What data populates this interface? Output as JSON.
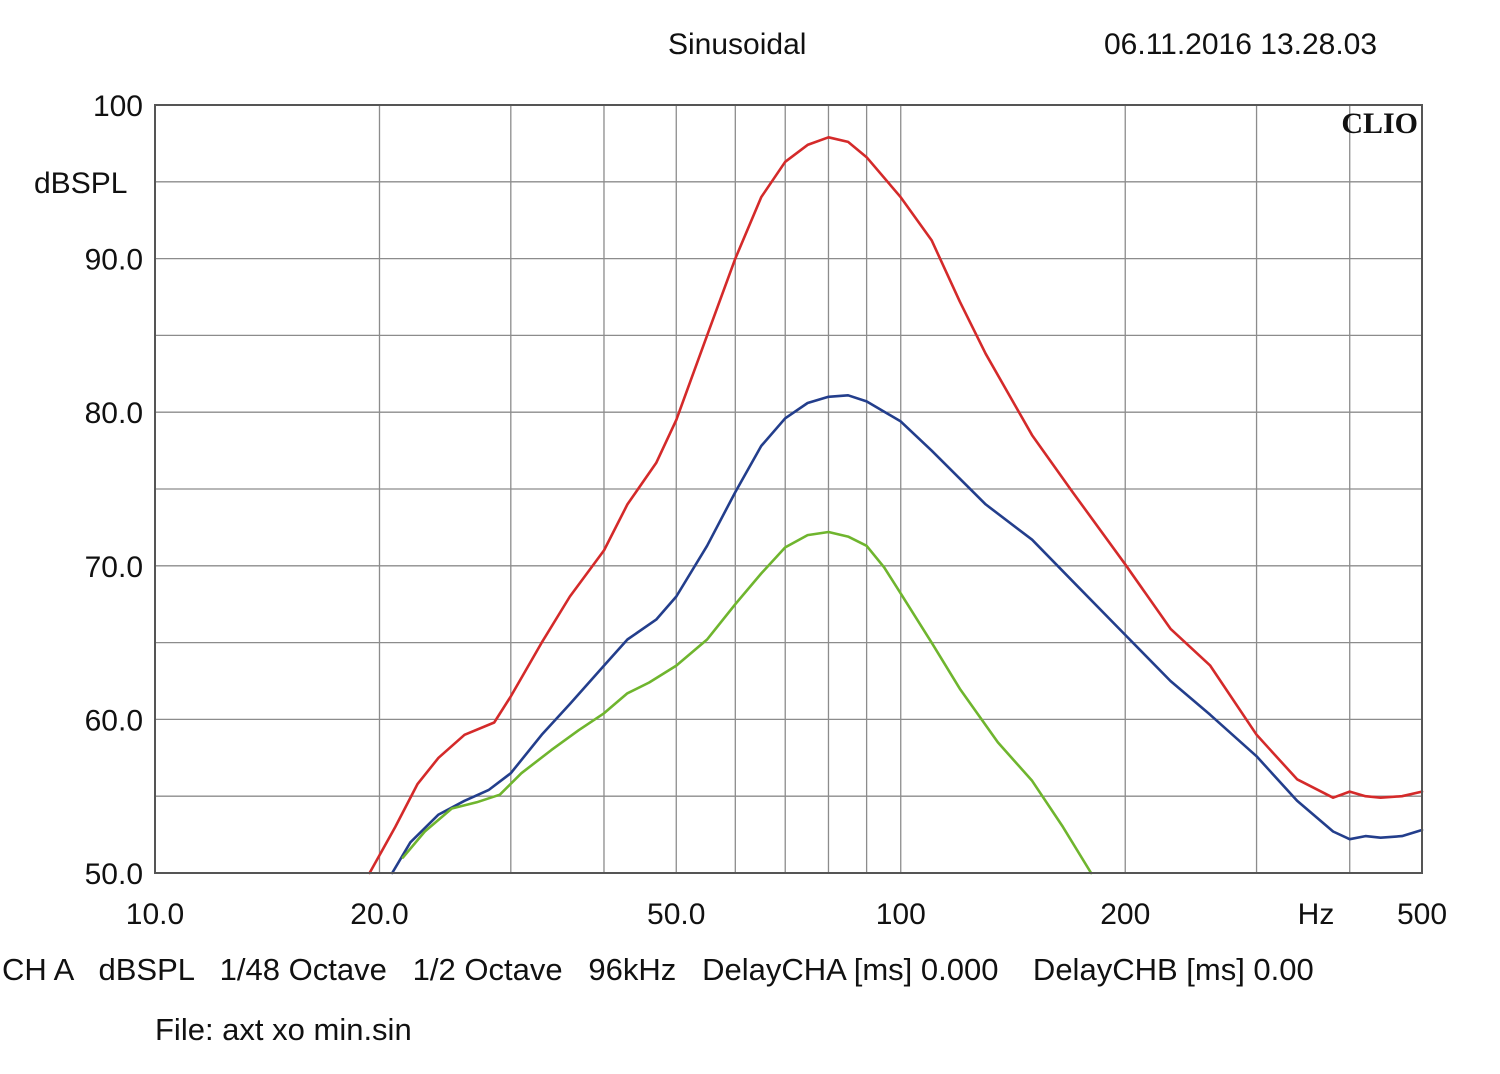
{
  "header": {
    "title": "Sinusoidal",
    "timestamp": "06.11.2016 13.28.03"
  },
  "footer": {
    "settings": "CH A   dBSPL   1/48 Octave   1/2 Octave   96kHz   DelayCHA [ms] 0.000    DelayCHB [ms] 0.00",
    "file": "File: axt xo min.sin"
  },
  "chart_data": {
    "type": "line",
    "brand": "CLIO",
    "ylabel": "dBSPL",
    "xlabel": "Hz",
    "x_scale": "log",
    "xlim": [
      10,
      500
    ],
    "ylim": [
      50,
      100
    ],
    "grid": true,
    "x_tick_labels": [
      {
        "value": 10,
        "label": "10.0"
      },
      {
        "value": 20,
        "label": "20.0"
      },
      {
        "value": 50,
        "label": "50.0"
      },
      {
        "value": 100,
        "label": "100"
      },
      {
        "value": 200,
        "label": "200"
      },
      {
        "value": 500,
        "label": "500"
      }
    ],
    "y_tick_labels": [
      {
        "value": 100,
        "label": "100"
      },
      {
        "value": 90,
        "label": "90.0"
      },
      {
        "value": 80,
        "label": "80.0"
      },
      {
        "value": 70,
        "label": "70.0"
      },
      {
        "value": 60,
        "label": "60.0"
      },
      {
        "value": 50,
        "label": "50.0"
      }
    ],
    "series": [
      {
        "color": "#d42a2a",
        "x": [
          19.4,
          21,
          22.5,
          24,
          26,
          28.5,
          30,
          33,
          36,
          40,
          43,
          47,
          50,
          55,
          60,
          65,
          70,
          75,
          80,
          85,
          90,
          100,
          110,
          120,
          130,
          150,
          170,
          200,
          230,
          260,
          300,
          340,
          380,
          400,
          420,
          440,
          470,
          500
        ],
        "y": [
          50,
          53,
          55.8,
          57.5,
          59,
          59.8,
          61.5,
          65,
          68,
          71,
          74,
          76.7,
          79.5,
          85,
          90,
          94,
          96.3,
          97.4,
          97.9,
          97.6,
          96.6,
          94,
          91.2,
          87.2,
          83.8,
          78.5,
          74.8,
          70.1,
          65.9,
          63.5,
          59,
          56.1,
          54.9,
          55.3,
          55,
          54.9,
          55,
          55.3
        ]
      },
      {
        "color": "#233e8c",
        "x": [
          20.8,
          22,
          24,
          26,
          28,
          30,
          33,
          36,
          40,
          43,
          47,
          50,
          55,
          60,
          65,
          70,
          75,
          80,
          85,
          90,
          100,
          110,
          130,
          150,
          170,
          200,
          230,
          260,
          300,
          340,
          380,
          400,
          420,
          440,
          470,
          500
        ],
        "y": [
          50,
          52,
          53.8,
          54.7,
          55.4,
          56.5,
          59,
          61,
          63.5,
          65.2,
          66.5,
          68,
          71.3,
          74.8,
          77.8,
          79.6,
          80.6,
          81,
          81.1,
          80.7,
          79.4,
          77.5,
          74,
          71.7,
          69,
          65.5,
          62.5,
          60.3,
          57.6,
          54.7,
          52.7,
          52.2,
          52.4,
          52.3,
          52.4,
          52.8
        ]
      },
      {
        "color": "#6fb52e",
        "x": [
          21.5,
          23,
          25,
          27,
          29,
          31,
          34,
          37,
          40,
          43,
          46,
          50,
          55,
          60,
          65,
          70,
          75,
          80,
          85,
          90,
          95,
          100,
          110,
          120,
          135,
          150,
          165,
          180
        ],
        "y": [
          51,
          52.7,
          54.2,
          54.6,
          55.1,
          56.5,
          58,
          59.3,
          60.4,
          61.7,
          62.4,
          63.5,
          65.2,
          67.5,
          69.5,
          71.2,
          72,
          72.2,
          71.9,
          71.3,
          69.9,
          68.2,
          65,
          62,
          58.5,
          56,
          53,
          50
        ]
      }
    ]
  }
}
